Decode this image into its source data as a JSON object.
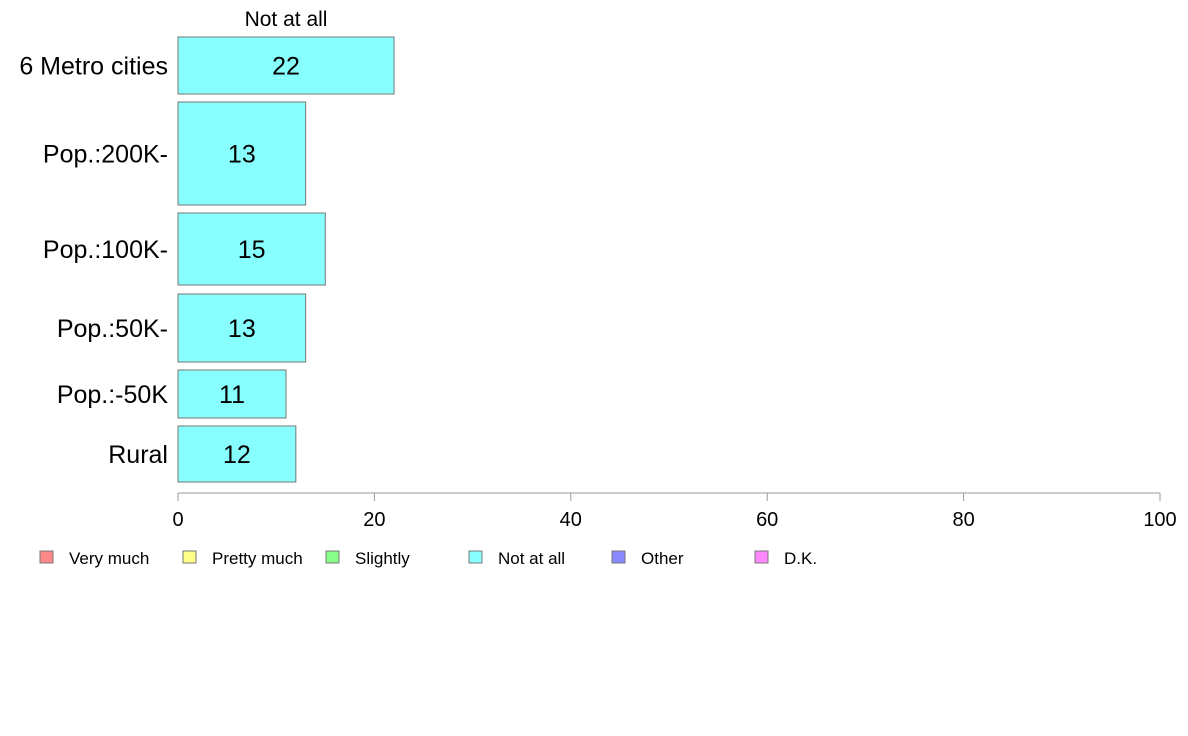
{
  "chart_data": {
    "type": "bar",
    "orientation": "horizontal",
    "stacked": true,
    "segment_label": "Not at all",
    "categories": [
      "6 Metro cities",
      "Pop.:200K-",
      "Pop.:100K-",
      "Pop.:50K-",
      "Pop.:-50K",
      "Rural"
    ],
    "series": [
      {
        "name": "Not at all",
        "color": "#88ffff",
        "values": [
          22,
          13,
          15,
          13,
          11,
          12
        ]
      }
    ],
    "xlim": [
      0,
      100
    ],
    "xticks": [
      0,
      20,
      40,
      60,
      80,
      100
    ],
    "grid": false,
    "legend": {
      "position": "bottom-left",
      "items": [
        {
          "label": "Very much",
          "color": "#ff8888"
        },
        {
          "label": "Pretty much",
          "color": "#ffff88"
        },
        {
          "label": "Slightly",
          "color": "#88ff88"
        },
        {
          "label": "Not at all",
          "color": "#88ffff"
        },
        {
          "label": "Other",
          "color": "#8888ff"
        },
        {
          "label": "D.K.",
          "color": "#ff88ff"
        }
      ]
    }
  }
}
